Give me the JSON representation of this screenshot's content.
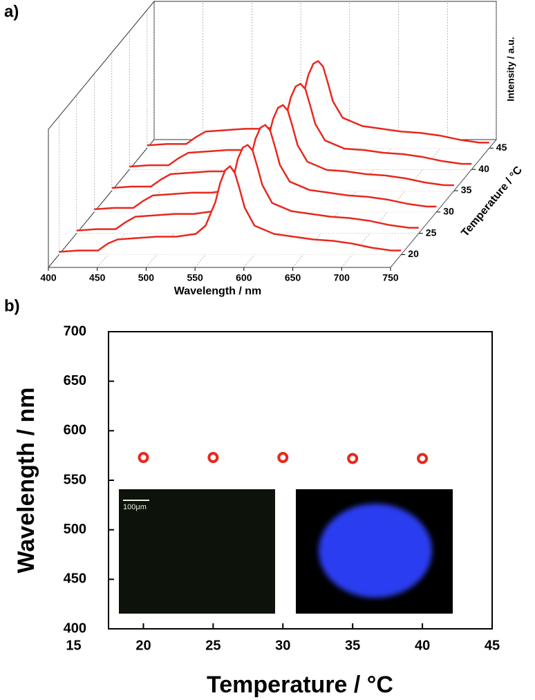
{
  "chart_data": [
    {
      "type": "waterfall",
      "panel_label": "a)",
      "x_label": "Wavelength / nm",
      "y_label": "Intensity / a.u.",
      "z_label": "Temperature / °C",
      "x": [
        400,
        420,
        440,
        450,
        460,
        480,
        500,
        520,
        540,
        550,
        560,
        565,
        570,
        575,
        580,
        585,
        590,
        600,
        620,
        640,
        660,
        680,
        700,
        720,
        740,
        750
      ],
      "xlim": [
        400,
        750
      ],
      "xticks": [
        400,
        450,
        500,
        550,
        600,
        650,
        700,
        750
      ],
      "ylim": [
        0,
        100
      ],
      "zlim": [
        17,
        47
      ],
      "zticks": [
        20,
        25,
        30,
        35,
        40,
        45
      ],
      "grid": true,
      "series": [
        {
          "z": 20,
          "color": "#e8281e",
          "values": [
            2,
            3,
            3,
            8,
            11,
            12,
            13,
            13,
            15,
            21,
            38,
            52,
            61,
            64,
            59,
            47,
            34,
            21,
            15,
            13,
            11,
            10,
            8,
            5,
            3,
            3
          ]
        },
        {
          "z": 25,
          "color": "#e8281e",
          "values": [
            2,
            3,
            3,
            8,
            12,
            13,
            14,
            14,
            16,
            22,
            39,
            54,
            62,
            64,
            60,
            48,
            35,
            22,
            16,
            14,
            12,
            11,
            9,
            6,
            4,
            4
          ]
        },
        {
          "z": 30,
          "color": "#e8281e",
          "values": [
            2,
            3,
            3,
            8,
            12,
            13,
            14,
            14,
            16,
            22,
            39,
            53,
            61,
            63,
            59,
            47,
            34,
            22,
            16,
            14,
            12,
            11,
            9,
            6,
            4,
            4
          ]
        },
        {
          "z": 35,
          "color": "#e8281e",
          "values": [
            2,
            3,
            3,
            8,
            12,
            13,
            14,
            14,
            16,
            21,
            38,
            52,
            60,
            62,
            58,
            46,
            33,
            21,
            15,
            14,
            12,
            11,
            9,
            6,
            4,
            4
          ]
        },
        {
          "z": 40,
          "color": "#e8281e",
          "values": [
            2,
            3,
            3,
            8,
            12,
            13,
            14,
            14,
            16,
            21,
            38,
            52,
            60,
            62,
            58,
            46,
            33,
            21,
            15,
            14,
            12,
            11,
            9,
            6,
            4,
            4
          ]
        },
        {
          "z": 45,
          "color": "#e8281e",
          "values": [
            2,
            3,
            3,
            8,
            12,
            13,
            14,
            14,
            16,
            22,
            39,
            53,
            61,
            63,
            59,
            47,
            34,
            22,
            16,
            14,
            12,
            11,
            9,
            6,
            4,
            4
          ]
        }
      ]
    },
    {
      "type": "scatter",
      "panel_label": "b)",
      "x_label": "Temperature / °C",
      "y_label": "Wavelength / nm",
      "x": [
        20,
        25,
        30,
        35,
        40
      ],
      "values": [
        573,
        573,
        573,
        572,
        572
      ],
      "color": "#e8281e",
      "xlim": [
        17.5,
        45
      ],
      "xticks": [
        15,
        20,
        25,
        30,
        35,
        40,
        45
      ],
      "ylim": [
        400,
        700
      ],
      "yticks": [
        400,
        450,
        500,
        550,
        600,
        650,
        700
      ],
      "inset_label": "100μm"
    }
  ]
}
